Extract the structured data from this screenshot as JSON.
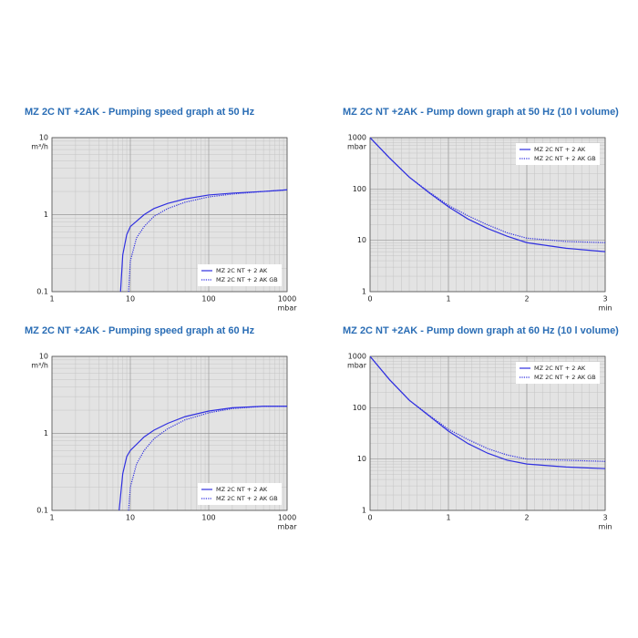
{
  "chart_data": [
    {
      "type": "line",
      "title": "MZ 2C NT +2AK - Pumping speed graph at 50 Hz",
      "xlabel": "mbar",
      "ylabel": "m³/h",
      "xlog": true,
      "ylog": true,
      "xlim": [
        1,
        1000
      ],
      "ylim": [
        0.1,
        10
      ],
      "xticks": [
        1,
        10,
        100,
        1000
      ],
      "yticks": [
        0.1,
        1,
        10
      ],
      "grid": true,
      "legend": "lower right",
      "series": [
        {
          "name": "MZ 2C NT + 2 AK",
          "color": "#3030e0",
          "style": "solid",
          "x": [
            7.5,
            8,
            9,
            10,
            15,
            20,
            30,
            50,
            100,
            200,
            500,
            1000
          ],
          "values": [
            0.1,
            0.3,
            0.55,
            0.7,
            1.0,
            1.2,
            1.4,
            1.6,
            1.8,
            1.9,
            2.0,
            2.1
          ]
        },
        {
          "name": "MZ 2C NT + 2 AK GB",
          "color": "#3030e0",
          "style": "dotted",
          "x": [
            9.5,
            10,
            12,
            15,
            20,
            30,
            50,
            100,
            200,
            500,
            1000
          ],
          "values": [
            0.1,
            0.25,
            0.5,
            0.7,
            0.95,
            1.2,
            1.45,
            1.7,
            1.85,
            2.0,
            2.1
          ]
        }
      ]
    },
    {
      "type": "line",
      "title": "MZ 2C NT +2AK - Pump down graph at 50 Hz (10 l volume)",
      "xlabel": "min",
      "ylabel": "mbar",
      "xlog": false,
      "ylog": true,
      "xlim": [
        0,
        3
      ],
      "ylim": [
        1,
        1000
      ],
      "xticks": [
        0,
        1,
        2,
        3
      ],
      "yticks": [
        1,
        10,
        100,
        1000
      ],
      "grid": true,
      "legend": "upper right",
      "series": [
        {
          "name": "MZ 2C NT + 2 AK",
          "color": "#3030e0",
          "style": "solid",
          "x": [
            0,
            0.25,
            0.5,
            0.75,
            1,
            1.25,
            1.5,
            1.75,
            2,
            2.5,
            3
          ],
          "values": [
            1000,
            400,
            170,
            85,
            45,
            26,
            17,
            12,
            9,
            7,
            6
          ]
        },
        {
          "name": "MZ 2C NT + 2 AK GB",
          "color": "#3030e0",
          "style": "dotted",
          "x": [
            0,
            0.25,
            0.5,
            0.75,
            1,
            1.25,
            1.5,
            1.75,
            2,
            2.5,
            3
          ],
          "values": [
            1000,
            400,
            170,
            88,
            48,
            30,
            20,
            14,
            11,
            9.5,
            9
          ]
        }
      ]
    },
    {
      "type": "line",
      "title": "MZ 2C NT +2AK - Pumping speed graph at 60 Hz",
      "xlabel": "mbar",
      "ylabel": "m³/h",
      "xlog": true,
      "ylog": true,
      "xlim": [
        1,
        1000
      ],
      "ylim": [
        0.1,
        10
      ],
      "xticks": [
        1,
        10,
        100,
        1000
      ],
      "yticks": [
        0.1,
        1,
        10
      ],
      "grid": true,
      "legend": "lower right",
      "series": [
        {
          "name": "MZ 2C NT + 2 AK",
          "color": "#3030e0",
          "style": "solid",
          "x": [
            7.2,
            8,
            9,
            10,
            15,
            20,
            30,
            50,
            100,
            200,
            500,
            1000
          ],
          "values": [
            0.1,
            0.3,
            0.5,
            0.6,
            0.9,
            1.1,
            1.35,
            1.65,
            1.95,
            2.15,
            2.25,
            2.25
          ]
        },
        {
          "name": "MZ 2C NT + 2 AK GB",
          "color": "#3030e0",
          "style": "dotted",
          "x": [
            9.5,
            10,
            12,
            15,
            20,
            30,
            50,
            100,
            200,
            500,
            1000
          ],
          "values": [
            0.1,
            0.2,
            0.4,
            0.6,
            0.85,
            1.15,
            1.5,
            1.85,
            2.1,
            2.25,
            2.25
          ]
        }
      ]
    },
    {
      "type": "line",
      "title": "MZ 2C NT +2AK - Pump down graph at 60 Hz (10 l volume)",
      "xlabel": "min",
      "ylabel": "mbar",
      "xlog": false,
      "ylog": true,
      "xlim": [
        0,
        3
      ],
      "ylim": [
        1,
        1000
      ],
      "xticks": [
        0,
        1,
        2,
        3
      ],
      "yticks": [
        1,
        10,
        100,
        1000
      ],
      "grid": true,
      "legend": "upper right",
      "series": [
        {
          "name": "MZ 2C NT + 2 AK",
          "color": "#3030e0",
          "style": "solid",
          "x": [
            0,
            0.25,
            0.5,
            0.75,
            1,
            1.25,
            1.5,
            1.75,
            2,
            2.5,
            3
          ],
          "values": [
            1000,
            350,
            140,
            70,
            35,
            20,
            13,
            9.5,
            8,
            7,
            6.5
          ]
        },
        {
          "name": "MZ 2C NT + 2 AK GB",
          "color": "#3030e0",
          "style": "dotted",
          "x": [
            0,
            0.25,
            0.5,
            0.75,
            1,
            1.25,
            1.5,
            1.75,
            2,
            2.5,
            3
          ],
          "values": [
            1000,
            350,
            140,
            72,
            38,
            24,
            16,
            12,
            10,
            9.5,
            9
          ]
        }
      ]
    }
  ]
}
